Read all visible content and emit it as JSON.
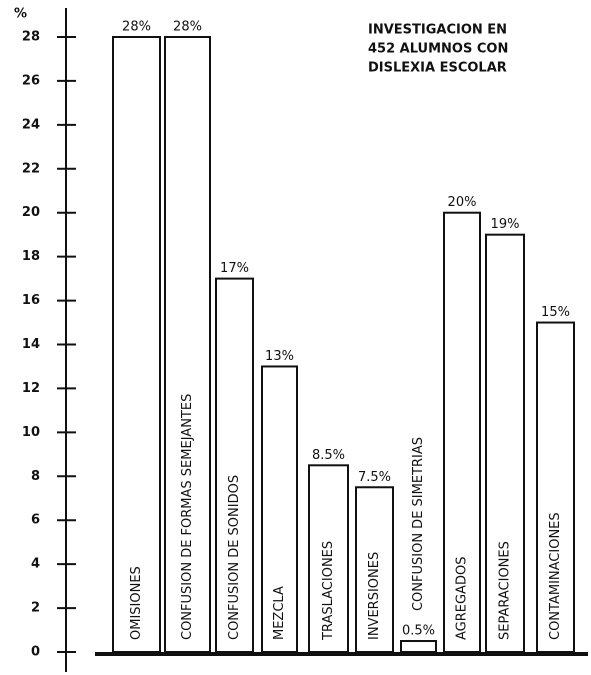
{
  "chart_data": {
    "type": "bar",
    "y_label": "%",
    "annotation": [
      "INVESTIGACION EN",
      "452 ALUMNOS CON",
      "DISLEXIA ESCOLAR"
    ],
    "categories": [
      "OMISIONES",
      "CONFUSION DE FORMAS SEMEJANTES",
      "CONFUSION DE SONIDOS",
      "MEZCLA",
      "TRASLACIONES",
      "INVERSIONES",
      "CONFUSION DE SIMETRIAS",
      "AGREGADOS",
      "SEPARACIONES",
      "CONTAMINACIONES"
    ],
    "values": [
      28,
      28,
      17,
      13,
      8.5,
      7.5,
      0.5,
      20,
      19,
      15
    ],
    "value_labels": [
      "28%",
      "28%",
      "17%",
      "13%",
      "8.5%",
      "7.5%",
      "0.5%",
      "20%",
      "19%",
      "15%"
    ],
    "color": "#ffffff",
    "ylim": [
      0,
      28
    ],
    "yticks": [
      0,
      2,
      4,
      6,
      8,
      10,
      12,
      14,
      16,
      18,
      20,
      22,
      24,
      26,
      28
    ]
  }
}
